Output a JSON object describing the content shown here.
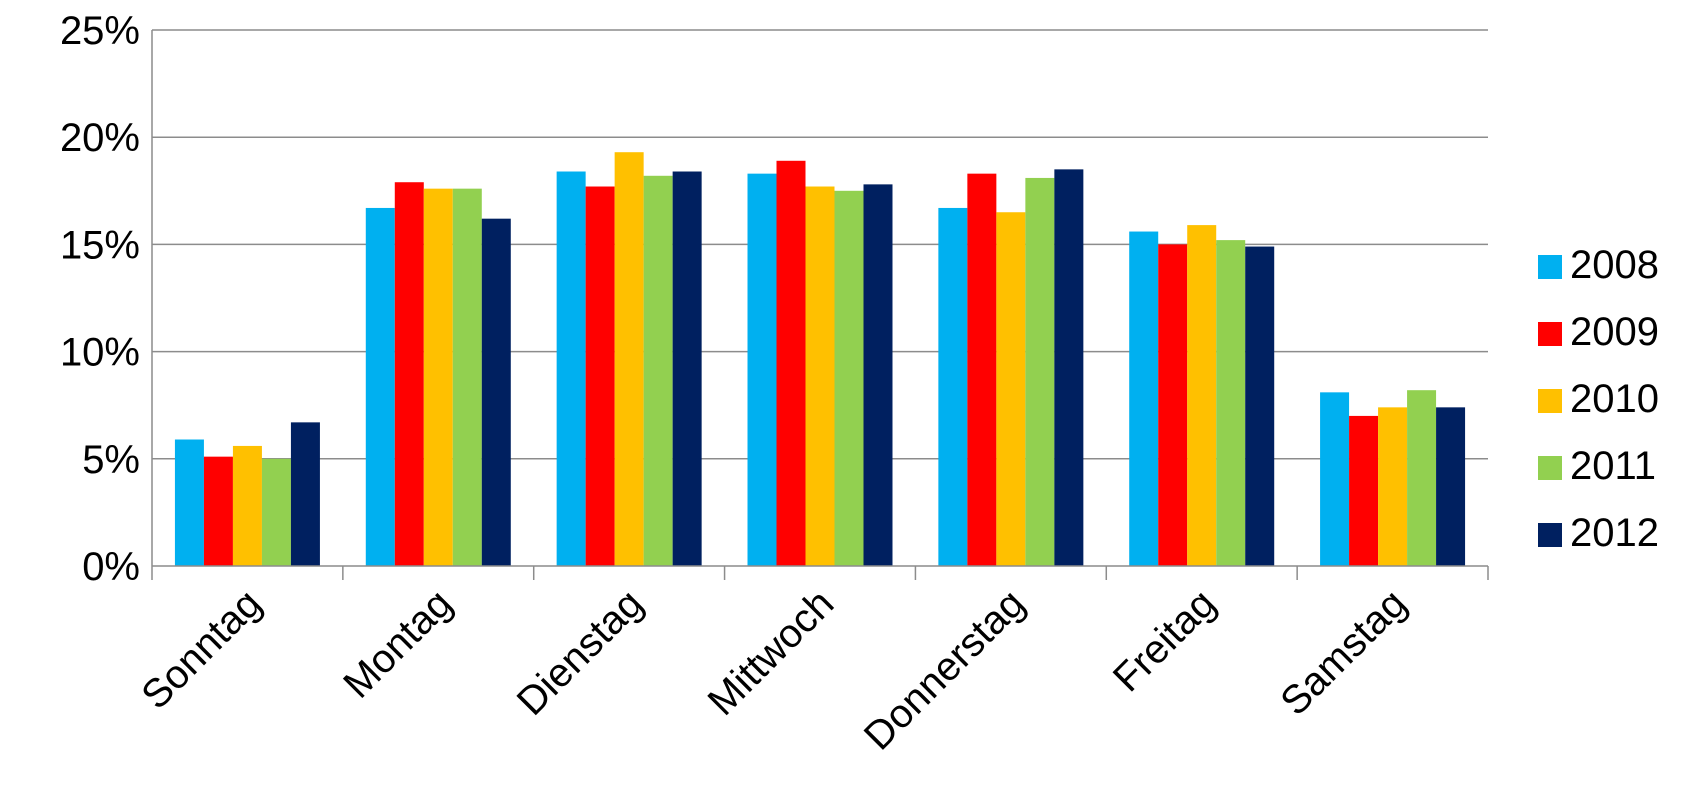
{
  "chart_data": {
    "type": "bar",
    "title": "",
    "xlabel": "",
    "ylabel": "",
    "ylim": [
      0,
      25
    ],
    "yticks": [
      "0%",
      "5%",
      "10%",
      "15%",
      "20%",
      "25%"
    ],
    "grid": true,
    "legend_position": "right",
    "categories": [
      "Sonntag",
      "Montag",
      "Dienstag",
      "Mittwoch",
      "Donnerstag",
      "Freitag",
      "Samstag"
    ],
    "series": [
      {
        "name": "2008",
        "color": "#00b0f0",
        "values": [
          5.9,
          16.7,
          18.4,
          18.3,
          16.7,
          15.6,
          8.1
        ]
      },
      {
        "name": "2009",
        "color": "#ff0000",
        "values": [
          5.1,
          17.9,
          17.7,
          18.9,
          18.3,
          15.0,
          7.0
        ]
      },
      {
        "name": "2010",
        "color": "#ffc000",
        "values": [
          5.6,
          17.6,
          19.3,
          17.7,
          16.5,
          15.9,
          7.4
        ]
      },
      {
        "name": "2011",
        "color": "#92d050",
        "values": [
          5.0,
          17.6,
          18.2,
          17.5,
          18.1,
          15.2,
          8.2
        ]
      },
      {
        "name": "2012",
        "color": "#002060",
        "values": [
          6.7,
          16.2,
          18.4,
          17.8,
          18.5,
          14.9,
          7.4
        ]
      }
    ]
  }
}
